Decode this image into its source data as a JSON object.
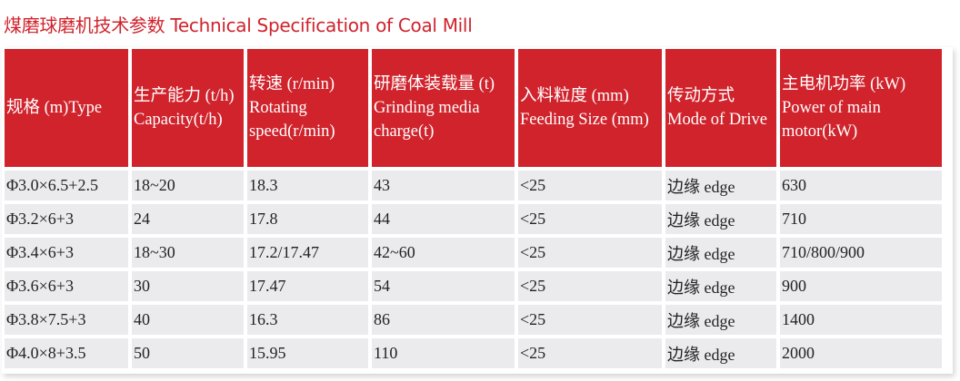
{
  "title": "煤磨球磨机技术参数  Technical Specification of Coal Mill",
  "columns": [
    [
      "规格 (m)Type"
    ],
    [
      "生产能力 (t/h)",
      "Capacity(t/h)"
    ],
    [
      "转速 (r/min)",
      "Rotating",
      "speed(r/min)"
    ],
    [
      "研磨体装载量 (t)",
      "Grinding media",
      "charge(t)"
    ],
    [
      "入料粒度 (mm)",
      "Feeding Size (mm)"
    ],
    [
      "传动方式",
      "Mode of Drive"
    ],
    [
      "主电机功率 (kW)",
      "Power of main",
      "motor(kW)"
    ]
  ],
  "rows": [
    [
      "Φ3.0×6.5+2.5",
      "18~20",
      "18.3",
      "43",
      "<25",
      "边缘 edge",
      "630"
    ],
    [
      "Φ3.2×6+3",
      "24",
      "17.8",
      "44",
      "<25",
      "边缘 edge",
      "710"
    ],
    [
      "Φ3.4×6+3",
      "18~30",
      "17.2/17.47",
      "42~60",
      "<25",
      "边缘 edge",
      "710/800/900"
    ],
    [
      "Φ3.6×6+3",
      "30",
      "17.47",
      "54",
      "<25",
      "边缘 edge",
      "900"
    ],
    [
      "Φ3.8×7.5+3",
      "40",
      "16.3",
      "86",
      "<25",
      "边缘 edge",
      "1400"
    ],
    [
      "Φ4.0×8+3.5",
      "50",
      "15.95",
      "110",
      "<25",
      "边缘 edge",
      "2000"
    ]
  ],
  "colors": {
    "accent": "#d0232c",
    "cell": "#ebebed"
  }
}
